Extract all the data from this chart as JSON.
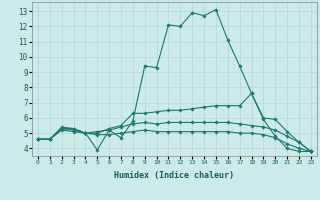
{
  "xlabel": "Humidex (Indice chaleur)",
  "bg_color": "#cceae7",
  "grid_color": "#b8d8d4",
  "line_color": "#1a7a6e",
  "x_ticks": [
    0,
    1,
    2,
    3,
    4,
    5,
    6,
    7,
    8,
    9,
    10,
    11,
    12,
    13,
    14,
    15,
    16,
    17,
    18,
    19,
    20,
    21,
    22,
    23
  ],
  "y_ticks": [
    4,
    5,
    6,
    7,
    8,
    9,
    10,
    11,
    12,
    13
  ],
  "xlim": [
    -0.5,
    23.5
  ],
  "ylim": [
    3.5,
    13.6
  ],
  "series": [
    {
      "x": [
        0,
        1,
        2,
        3,
        4,
        5,
        6,
        7,
        8,
        9,
        10,
        11,
        12,
        13,
        14,
        15,
        16,
        17,
        18,
        19,
        20,
        21,
        22,
        23
      ],
      "y": [
        4.6,
        4.6,
        5.4,
        5.3,
        5.0,
        3.9,
        5.2,
        4.7,
        5.8,
        9.4,
        9.3,
        12.1,
        12.0,
        12.9,
        12.7,
        13.1,
        11.1,
        9.4,
        7.6,
        5.9,
        4.8,
        4.0,
        3.8,
        3.8
      ]
    },
    {
      "x": [
        0,
        1,
        2,
        3,
        4,
        5,
        6,
        7,
        8,
        9,
        10,
        11,
        12,
        13,
        14,
        15,
        16,
        17,
        18,
        19,
        20,
        21,
        22,
        23
      ],
      "y": [
        4.6,
        4.6,
        5.3,
        5.3,
        5.0,
        5.0,
        5.3,
        5.5,
        6.3,
        6.3,
        6.4,
        6.5,
        6.5,
        6.6,
        6.7,
        6.8,
        6.8,
        6.8,
        7.6,
        6.0,
        5.9,
        5.1,
        4.4,
        3.8
      ]
    },
    {
      "x": [
        0,
        1,
        2,
        3,
        4,
        5,
        6,
        7,
        8,
        9,
        10,
        11,
        12,
        13,
        14,
        15,
        16,
        17,
        18,
        19,
        20,
        21,
        22,
        23
      ],
      "y": [
        4.6,
        4.6,
        5.3,
        5.2,
        5.0,
        5.1,
        5.2,
        5.4,
        5.6,
        5.7,
        5.6,
        5.7,
        5.7,
        5.7,
        5.7,
        5.7,
        5.7,
        5.6,
        5.5,
        5.4,
        5.2,
        4.8,
        4.4,
        3.8
      ]
    },
    {
      "x": [
        0,
        1,
        2,
        3,
        4,
        5,
        6,
        7,
        8,
        9,
        10,
        11,
        12,
        13,
        14,
        15,
        16,
        17,
        18,
        19,
        20,
        21,
        22,
        23
      ],
      "y": [
        4.6,
        4.6,
        5.2,
        5.1,
        5.0,
        4.9,
        4.9,
        5.0,
        5.1,
        5.2,
        5.1,
        5.1,
        5.1,
        5.1,
        5.1,
        5.1,
        5.1,
        5.0,
        5.0,
        4.9,
        4.7,
        4.3,
        4.0,
        3.8
      ]
    }
  ]
}
